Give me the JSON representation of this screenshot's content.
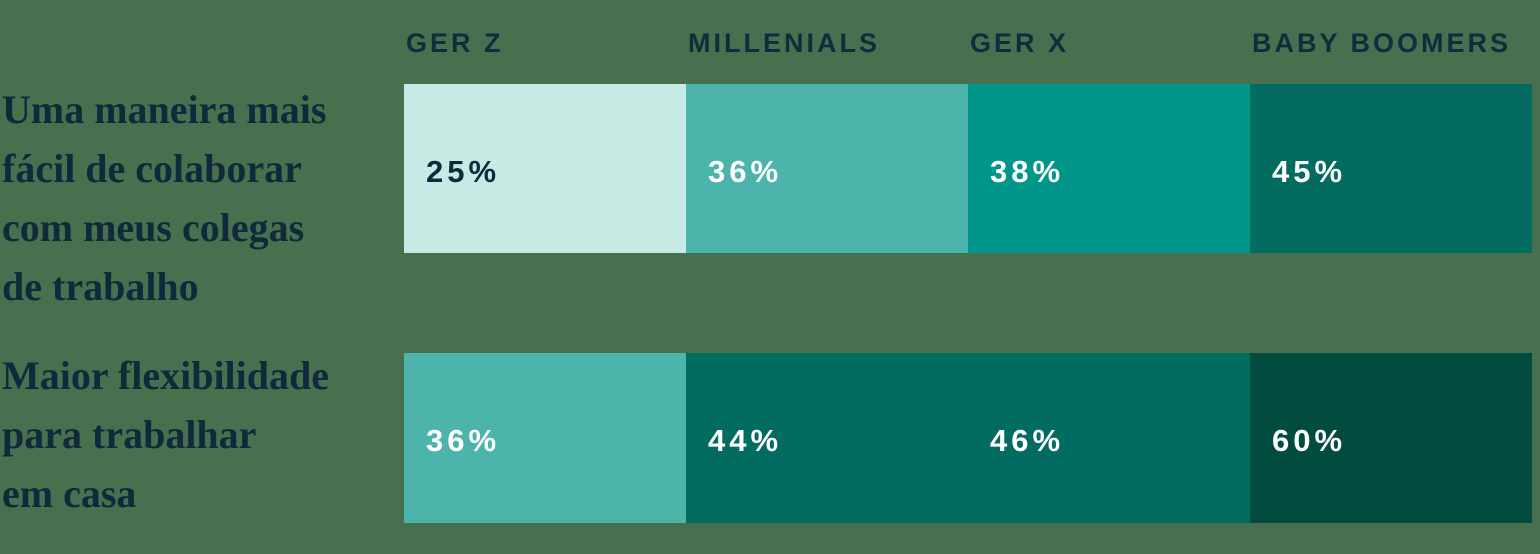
{
  "colors": {
    "background": "#48704F",
    "header_text": "#122C3E",
    "label_text": "#10293B"
  },
  "chart_data": {
    "type": "table",
    "title": "",
    "legend": "none",
    "layout_hint": "two rows of four equal-width colored cells, value printed inside each cell, color darkens with value",
    "columns": [
      {
        "label": "GER Z"
      },
      {
        "label": "MILLENIALS"
      },
      {
        "label": "GER X"
      },
      {
        "label": "BABY BOOMERS"
      }
    ],
    "rows": [
      {
        "label": "Uma maneira mais\nfácil de colaborar\ncom meus colegas\nde trabalho",
        "label_plain": "Uma maneira mais fácil de colaborar com meus colegas de trabalho",
        "cells": [
          {
            "value": "25%",
            "value_num": 25,
            "bg": "#C8EAE4",
            "fg": "#10293B"
          },
          {
            "value": "36%",
            "value_num": 36,
            "bg": "#4DB4AB",
            "fg": "#FFFFFF"
          },
          {
            "value": "38%",
            "value_num": 38,
            "bg": "#009689",
            "fg": "#FFFFFF"
          },
          {
            "value": "45%",
            "value_num": 45,
            "bg": "#016C5F",
            "fg": "#FFFFFF"
          }
        ]
      },
      {
        "label": "Maior flexibilidade\npara trabalhar\nem casa",
        "label_plain": "Maior flexibilidade para trabalhar em casa",
        "cells": [
          {
            "value": "36%",
            "value_num": 36,
            "bg": "#4DB4AB",
            "fg": "#FFFFFF"
          },
          {
            "value": "44%",
            "value_num": 44,
            "bg": "#016C5F",
            "fg": "#FFFFFF"
          },
          {
            "value": "46%",
            "value_num": 46,
            "bg": "#016C5F",
            "fg": "#FFFFFF"
          },
          {
            "value": "60%",
            "value_num": 60,
            "bg": "#024B3F",
            "fg": "#FFFFFF"
          }
        ]
      }
    ]
  }
}
